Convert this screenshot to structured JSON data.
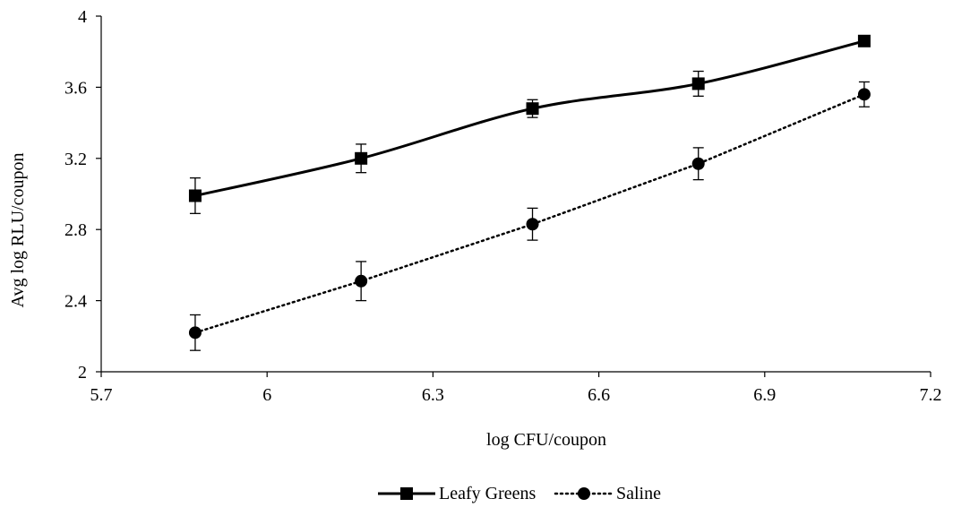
{
  "chart_data": {
    "type": "line",
    "xlabel": "log CFU/coupon",
    "ylabel": "Avg log RLU/coupon",
    "xlim": [
      5.7,
      7.2
    ],
    "ylim": [
      2,
      4
    ],
    "xticks": [
      5.7,
      6.0,
      6.3,
      6.6,
      6.9,
      7.2
    ],
    "xtick_labels": [
      "5.7",
      "6",
      "6.3",
      "6.6",
      "6.9",
      "7.2"
    ],
    "yticks": [
      2,
      2.4,
      2.8,
      3.2,
      3.6,
      4
    ],
    "ytick_labels": [
      "2",
      "2.4",
      "2.8",
      "3.2",
      "3.6",
      "4"
    ],
    "grid": false,
    "legend_position": "bottom-center",
    "series": [
      {
        "name": "Leafy Greens",
        "marker": "square",
        "line_style": "solid",
        "smooth": true,
        "color": "#000000",
        "points": [
          {
            "x": 5.87,
            "y": 2.99,
            "err": 0.1
          },
          {
            "x": 6.17,
            "y": 3.2,
            "err": 0.08
          },
          {
            "x": 6.48,
            "y": 3.48,
            "err": 0.05
          },
          {
            "x": 6.78,
            "y": 3.62,
            "err": 0.07
          },
          {
            "x": 7.08,
            "y": 3.86,
            "err": 0.0
          }
        ]
      },
      {
        "name": "Saline",
        "marker": "circle",
        "line_style": "dotted",
        "smooth": false,
        "color": "#000000",
        "points": [
          {
            "x": 5.87,
            "y": 2.22,
            "err": 0.1
          },
          {
            "x": 6.17,
            "y": 2.51,
            "err": 0.11
          },
          {
            "x": 6.48,
            "y": 2.83,
            "err": 0.09
          },
          {
            "x": 6.78,
            "y": 3.17,
            "err": 0.09
          },
          {
            "x": 7.08,
            "y": 3.56,
            "err": 0.07
          }
        ]
      }
    ]
  }
}
